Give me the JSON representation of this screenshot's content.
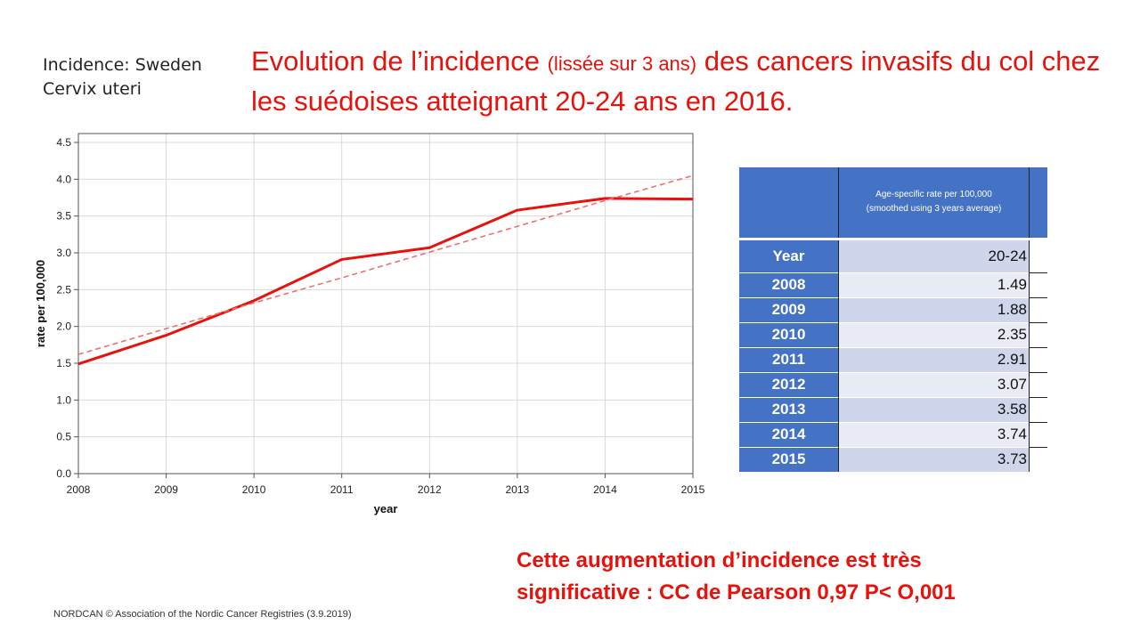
{
  "chart_heading": {
    "line1": "Incidence: Sweden",
    "line2": "Cervix uteri"
  },
  "slide_title": {
    "part1": "Evolution de l’incidence ",
    "part_small": "(lissée sur 3 ans)",
    "part2": " des cancers invasifs du col chez les suédoises atteignant 20-24 ans en 2016."
  },
  "chart_data": {
    "type": "line",
    "x": [
      2008,
      2009,
      2010,
      2011,
      2012,
      2013,
      2014,
      2015
    ],
    "series": [
      {
        "values": [
          1.49,
          1.88,
          2.35,
          2.91,
          3.07,
          3.58,
          3.74,
          3.73
        ],
        "color": "#e8120c",
        "style": "solid"
      },
      {
        "values": [
          1.62,
          1.97,
          2.32,
          2.66,
          3.01,
          3.36,
          3.71,
          4.05
        ],
        "color": "#f07070",
        "style": "dashed",
        "kind": "trend"
      }
    ],
    "xlabel": "year",
    "ylabel": "rate per 100,000",
    "xlim": [
      2008,
      2015
    ],
    "ylim": [
      0,
      4.5
    ],
    "yticks": [
      "0.0",
      "0.5",
      "1.0",
      "1.5",
      "2.0",
      "2.5",
      "3.0",
      "3.5",
      "4.0",
      "4.5"
    ],
    "xticks": [
      "2008",
      "2009",
      "2010",
      "2011",
      "2012",
      "2013",
      "2014",
      "2015"
    ],
    "grid": true
  },
  "table": {
    "header_line1": "Age-specific rate per 100,000",
    "header_line2": "(smoothed using  3 years average)",
    "col_year": "Year",
    "col_age": "20-24",
    "rows": [
      {
        "year": "2008",
        "value": "1.49"
      },
      {
        "year": "2009",
        "value": "1.88"
      },
      {
        "year": "2010",
        "value": "2.35"
      },
      {
        "year": "2011",
        "value": "2.91"
      },
      {
        "year": "2012",
        "value": "3.07"
      },
      {
        "year": "2013",
        "value": "3.58"
      },
      {
        "year": "2014",
        "value": "3.74"
      },
      {
        "year": "2015",
        "value": "3.73"
      }
    ]
  },
  "conclusion": {
    "line1": "Cette augmentation d’incidence est très",
    "line2": "significative : CC de Pearson 0,97 P< O,001"
  },
  "footer": "NORDCAN © Association of the Nordic Cancer Registries (3.9.2019)",
  "colors": {
    "accent_red": "#e8120c",
    "table_blue": "#4472c4"
  }
}
